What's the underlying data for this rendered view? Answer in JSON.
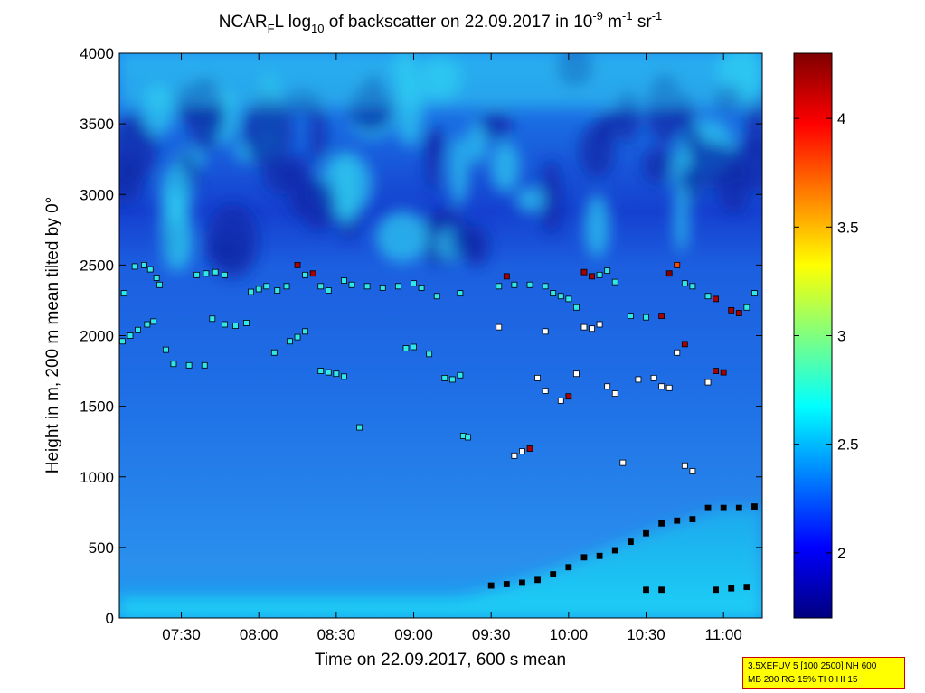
{
  "chart_data": {
    "type": "heatmap",
    "title": {
      "prefix": "NCAR",
      "sub1": "F",
      "mid1": "L log",
      "sub2": "10",
      "mid2": " of backscatter on 22.09.2017 in 10",
      "sup1": "-9",
      "mid3": " m",
      "sup2": "-1",
      "mid4": " sr",
      "sup3": "-1"
    },
    "xlabel": "Time on 22.09.2017, 600 s mean",
    "ylabel": "Height in m, 200 m mean tilted by 0°",
    "x_ticks": [
      {
        "v": 7.5,
        "label": "07:30"
      },
      {
        "v": 8.0,
        "label": "08:00"
      },
      {
        "v": 8.5,
        "label": "08:30"
      },
      {
        "v": 9.0,
        "label": "09:00"
      },
      {
        "v": 9.5,
        "label": "09:30"
      },
      {
        "v": 10.0,
        "label": "10:00"
      },
      {
        "v": 10.5,
        "label": "10:30"
      },
      {
        "v": 11.0,
        "label": "11:00"
      }
    ],
    "y_ticks": [
      {
        "v": 0,
        "label": "0"
      },
      {
        "v": 500,
        "label": "500"
      },
      {
        "v": 1000,
        "label": "1000"
      },
      {
        "v": 1500,
        "label": "1500"
      },
      {
        "v": 2000,
        "label": "2000"
      },
      {
        "v": 2500,
        "label": "2500"
      },
      {
        "v": 3000,
        "label": "3000"
      },
      {
        "v": 3500,
        "label": "3500"
      },
      {
        "v": 4000,
        "label": "4000"
      }
    ],
    "xlim": [
      7.1,
      11.25
    ],
    "ylim": [
      0,
      4000
    ],
    "colorbar": {
      "range": [
        1.7,
        4.3
      ],
      "ticks": [
        {
          "v": 2.0,
          "label": "2"
        },
        {
          "v": 2.5,
          "label": "2.5"
        },
        {
          "v": 3.0,
          "label": "3"
        },
        {
          "v": 3.5,
          "label": "3.5"
        },
        {
          "v": 4.0,
          "label": "4"
        }
      ],
      "colormap": "jet"
    },
    "background_field": {
      "description_values": "log10 backscatter",
      "surface_level": 2.25,
      "upper_level": 2.2,
      "boundary_layer_top_m": [
        {
          "t": 7.1,
          "h": 150
        },
        {
          "t": 9.3,
          "h": 150
        },
        {
          "t": 9.6,
          "h": 230
        },
        {
          "t": 10.0,
          "h": 380
        },
        {
          "t": 10.5,
          "h": 600
        },
        {
          "t": 11.0,
          "h": 780
        },
        {
          "t": 11.25,
          "h": 780
        }
      ]
    },
    "cloud_detections": [
      {
        "name": "upper-layer",
        "points": [
          [
            7.13,
            2300,
            2.6
          ],
          [
            7.2,
            2490,
            2.6
          ],
          [
            7.26,
            2500,
            2.6
          ],
          [
            7.3,
            2470,
            2.6
          ],
          [
            7.34,
            2410,
            2.6
          ],
          [
            7.36,
            2360,
            2.6
          ],
          [
            7.6,
            2430,
            2.6
          ],
          [
            7.66,
            2440,
            2.6
          ],
          [
            7.72,
            2450,
            2.6
          ],
          [
            7.78,
            2430,
            2.6
          ],
          [
            7.95,
            2310,
            2.6
          ],
          [
            8.0,
            2330,
            2.6
          ],
          [
            8.05,
            2350,
            2.6
          ],
          [
            8.12,
            2320,
            2.6
          ],
          [
            8.18,
            2350,
            2.6
          ],
          [
            8.25,
            2500,
            4.2
          ],
          [
            8.3,
            2430,
            2.6
          ],
          [
            8.35,
            2440,
            4.2
          ],
          [
            8.4,
            2350,
            2.6
          ],
          [
            8.45,
            2320,
            2.6
          ],
          [
            8.55,
            2390,
            2.6
          ],
          [
            8.6,
            2360,
            2.6
          ],
          [
            8.7,
            2350,
            2.6
          ],
          [
            8.8,
            2340,
            2.6
          ],
          [
            8.9,
            2350,
            2.6
          ],
          [
            9.0,
            2370,
            2.6
          ],
          [
            9.05,
            2340,
            2.6
          ],
          [
            9.15,
            2280,
            2.6
          ],
          [
            9.3,
            2300,
            2.6
          ],
          [
            9.55,
            2350,
            2.6
          ],
          [
            9.6,
            2420,
            4.2
          ],
          [
            9.65,
            2360,
            2.6
          ],
          [
            9.75,
            2360,
            2.6
          ],
          [
            9.85,
            2350,
            2.6
          ],
          [
            9.9,
            2300,
            2.6
          ],
          [
            9.95,
            2280,
            2.6
          ],
          [
            10.0,
            2260,
            2.6
          ],
          [
            10.05,
            2200,
            2.6
          ],
          [
            10.1,
            2450,
            4.2
          ],
          [
            10.15,
            2420,
            4.2
          ],
          [
            10.2,
            2430,
            2.6
          ],
          [
            10.25,
            2460,
            2.6
          ],
          [
            10.3,
            2380,
            2.6
          ],
          [
            10.4,
            2140,
            2.6
          ],
          [
            10.5,
            2130,
            2.6
          ],
          [
            10.6,
            2140,
            4.2
          ],
          [
            10.65,
            2440,
            4.3
          ],
          [
            10.7,
            2500,
            3.8
          ],
          [
            10.75,
            2370,
            2.6
          ],
          [
            10.8,
            2350,
            2.6
          ],
          [
            10.9,
            2280,
            2.6
          ],
          [
            10.95,
            2260,
            4.2
          ],
          [
            11.05,
            2180,
            4.2
          ],
          [
            11.1,
            2160,
            4.2
          ],
          [
            11.15,
            2200,
            2.6
          ],
          [
            11.2,
            2300,
            2.6
          ]
        ]
      },
      {
        "name": "mid-layer-2000",
        "points": [
          [
            7.12,
            1960,
            2.6
          ],
          [
            7.17,
            2000,
            2.6
          ],
          [
            7.22,
            2040,
            2.6
          ],
          [
            7.28,
            2080,
            2.6
          ],
          [
            7.32,
            2100,
            2.6
          ],
          [
            7.4,
            1900,
            2.6
          ],
          [
            7.45,
            1800,
            2.6
          ],
          [
            7.55,
            1790,
            2.6
          ],
          [
            7.65,
            1790,
            2.6
          ],
          [
            7.7,
            2120,
            2.6
          ],
          [
            7.78,
            2080,
            2.6
          ],
          [
            7.85,
            2070,
            2.6
          ],
          [
            7.92,
            2090,
            2.6
          ],
          [
            8.1,
            1880,
            2.6
          ],
          [
            8.2,
            1960,
            2.6
          ],
          [
            8.25,
            1990,
            2.6
          ],
          [
            8.3,
            2030,
            2.6
          ],
          [
            8.4,
            1750,
            2.6
          ],
          [
            8.45,
            1740,
            2.6
          ],
          [
            8.5,
            1730,
            2.6
          ],
          [
            8.55,
            1710,
            2.6
          ],
          [
            8.65,
            1350,
            2.6
          ],
          [
            8.95,
            1910,
            2.6
          ],
          [
            9.0,
            1920,
            2.6
          ],
          [
            9.1,
            1870,
            2.6
          ],
          [
            9.2,
            1700,
            2.6
          ],
          [
            9.25,
            1690,
            2.6
          ],
          [
            9.3,
            1720,
            2.6
          ],
          [
            9.32,
            1290,
            2.6
          ],
          [
            9.35,
            1280,
            2.6
          ],
          [
            9.55,
            2060,
            2.6
          ],
          [
            9.65,
            1150,
            2.6
          ],
          [
            9.7,
            1180,
            2.6
          ],
          [
            9.75,
            1200,
            4.2
          ],
          [
            9.8,
            1700,
            2.6
          ],
          [
            9.85,
            1610,
            2.6
          ],
          [
            9.85,
            2030,
            2.6
          ],
          [
            9.95,
            1540,
            2.6
          ],
          [
            10.0,
            1570,
            4.2
          ],
          [
            10.05,
            1730,
            2.6
          ],
          [
            10.1,
            2060,
            2.6
          ],
          [
            10.15,
            2050,
            2.6
          ],
          [
            10.2,
            2080,
            2.6
          ],
          [
            10.25,
            1640,
            2.6
          ],
          [
            10.3,
            1590,
            2.6
          ],
          [
            10.35,
            1100,
            2.6
          ],
          [
            10.45,
            1690,
            2.6
          ],
          [
            10.55,
            1700,
            2.6
          ],
          [
            10.6,
            1640,
            2.6
          ],
          [
            10.65,
            1630,
            2.6
          ],
          [
            10.7,
            1880,
            2.6
          ],
          [
            10.75,
            1940,
            4.2
          ],
          [
            10.75,
            1080,
            2.6
          ],
          [
            10.8,
            1040,
            2.6
          ],
          [
            10.9,
            1670,
            2.6
          ],
          [
            10.95,
            1750,
            4.2
          ],
          [
            11.0,
            1740,
            4.2
          ]
        ]
      },
      {
        "name": "boundary-layer-top",
        "points": [
          [
            9.5,
            230,
            2.6
          ],
          [
            9.6,
            240,
            2.6
          ],
          [
            9.7,
            250,
            2.6
          ],
          [
            9.8,
            270,
            2.6
          ],
          [
            9.9,
            310,
            2.6
          ],
          [
            10.0,
            360,
            2.6
          ],
          [
            10.1,
            430,
            2.6
          ],
          [
            10.2,
            440,
            2.6
          ],
          [
            10.3,
            480,
            2.6
          ],
          [
            10.4,
            540,
            2.6
          ],
          [
            10.5,
            600,
            2.6
          ],
          [
            10.6,
            670,
            2.6
          ],
          [
            10.7,
            690,
            2.6
          ],
          [
            10.8,
            700,
            2.6
          ],
          [
            10.9,
            780,
            2.6
          ],
          [
            11.0,
            780,
            2.6
          ],
          [
            11.1,
            780,
            2.6
          ],
          [
            11.2,
            790,
            2.6
          ],
          [
            10.5,
            200,
            2.6
          ],
          [
            10.6,
            200,
            2.6
          ],
          [
            10.95,
            200,
            2.6
          ],
          [
            11.05,
            210,
            2.6
          ],
          [
            11.15,
            220,
            2.6
          ]
        ]
      }
    ]
  },
  "info_box": {
    "line1": "3.5XEFUV 5 [100 2500] NH 600",
    "line2": "MB 200 RG 15% TI 0 HI 15"
  }
}
